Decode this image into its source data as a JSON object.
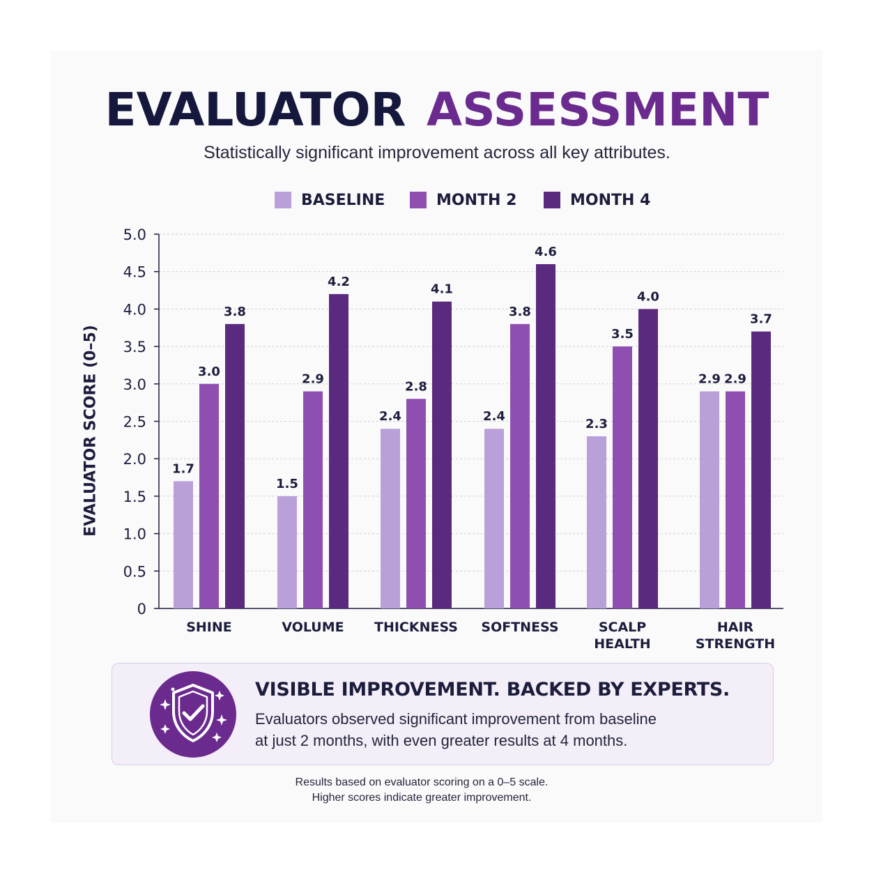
{
  "title": {
    "part1": "EVALUATOR",
    "part2": "ASSESSMENT"
  },
  "subtitle": "Statistically significant improvement across all key attributes.",
  "colors": {
    "title_dark": "#15173d",
    "title_accent": "#6a2a8e",
    "baseline": "#b9a0d8",
    "month2": "#8f4fb0",
    "month4": "#5a2a7e",
    "callout_bg": "#f3eef8",
    "badge": "#6a2a8e"
  },
  "legend": [
    {
      "label": "BASELINE",
      "color": "#b9a0d8"
    },
    {
      "label": "MONTH 2",
      "color": "#8f4fb0"
    },
    {
      "label": "MONTH 4",
      "color": "#5a2a7e"
    }
  ],
  "chart_data": {
    "type": "bar",
    "ylabel": "EVALUATOR SCORE (0–5)",
    "xlabel": "",
    "ylim": [
      0,
      5
    ],
    "yticks": [
      "0",
      "0.5",
      "1.0",
      "1.5",
      "2.0",
      "2.5",
      "3.0",
      "3.5",
      "4.0",
      "4.5",
      "5.0"
    ],
    "grid": true,
    "legend_position": "top",
    "categories": [
      [
        "SHINE"
      ],
      [
        "VOLUME"
      ],
      [
        "THICKNESS"
      ],
      [
        "SOFTNESS"
      ],
      [
        "SCALP",
        "HEALTH"
      ],
      [
        "HAIR",
        "STRENGTH"
      ]
    ],
    "series": [
      {
        "name": "BASELINE",
        "values": [
          1.7,
          1.5,
          2.4,
          2.4,
          2.3,
          2.9
        ]
      },
      {
        "name": "MONTH 2",
        "values": [
          3.0,
          2.9,
          2.8,
          3.8,
          3.5,
          2.9
        ]
      },
      {
        "name": "MONTH 4",
        "values": [
          3.8,
          4.2,
          4.1,
          4.6,
          4.0,
          3.7
        ]
      }
    ]
  },
  "callout": {
    "icon": "shield-check-icon",
    "heading": "VISIBLE IMPROVEMENT. BACKED BY EXPERTS.",
    "line1": "Evaluators observed significant improvement from baseline",
    "line2": "at just 2 months, with even greater results at 4 months."
  },
  "footnote": {
    "line1": "Results based on evaluator scoring on a 0–5 scale.",
    "line2": "Higher scores indicate greater improvement."
  }
}
